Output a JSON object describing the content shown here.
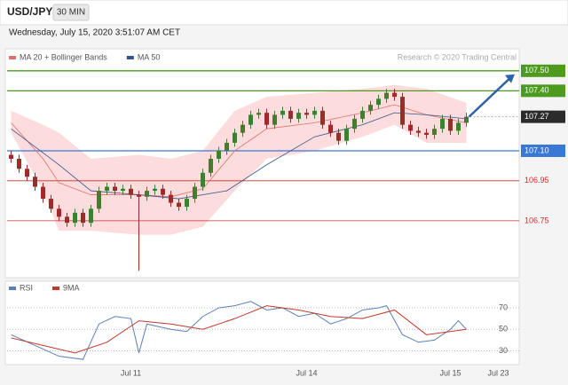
{
  "header": {
    "symbol": "USD/JPY",
    "timeframe": "30 MIN",
    "datetime": "Wednesday, July 15, 2020 3:51:07 AM CET",
    "source": "Research © 2020 Trading Central"
  },
  "chart_data": [
    {
      "type": "candlestick",
      "categories": [
        null,
        null,
        null,
        null,
        null,
        null,
        null,
        null,
        null,
        null,
        null,
        null,
        null,
        null,
        null,
        "Jul 11",
        null,
        null,
        null,
        null,
        null,
        null,
        null,
        null,
        null,
        null,
        null,
        null,
        null,
        null,
        null,
        null,
        null,
        null,
        null,
        null,
        null,
        "Jul 14",
        null,
        null,
        null,
        null,
        null,
        null,
        null,
        null,
        null,
        null,
        null,
        null,
        null,
        null,
        null,
        null,
        null,
        "Jul 15",
        null,
        null,
        null,
        null,
        null,
        "Jul 23",
        null,
        null
      ],
      "open": [
        107.08,
        107.06,
        107.01,
        106.97,
        106.92,
        106.86,
        106.81,
        106.77,
        106.74,
        106.79,
        106.74,
        106.81,
        106.9,
        106.92,
        106.9,
        106.91,
        106.88,
        106.87,
        106.9,
        106.91,
        106.88,
        106.84,
        106.82,
        106.86,
        106.92,
        106.99,
        107.06,
        107.1,
        107.14,
        107.19,
        107.23,
        107.28,
        107.29,
        107.23,
        107.28,
        107.3,
        107.26,
        107.29,
        107.28,
        107.3,
        107.23,
        107.19,
        107.15,
        107.21,
        107.26,
        107.3,
        107.33,
        107.36,
        107.39,
        107.37,
        107.23,
        107.2,
        107.19,
        107.18,
        107.21,
        107.26,
        107.2,
        107.24,
        null,
        null,
        null,
        null,
        null,
        null
      ],
      "high": [
        107.1,
        107.08,
        107.03,
        106.99,
        106.94,
        106.88,
        106.83,
        106.79,
        106.81,
        106.81,
        106.83,
        106.92,
        106.94,
        106.94,
        106.93,
        106.93,
        106.9,
        106.92,
        106.93,
        106.93,
        106.9,
        106.86,
        106.88,
        106.94,
        107.01,
        107.08,
        107.12,
        107.16,
        107.21,
        107.25,
        107.3,
        107.31,
        107.31,
        107.3,
        107.32,
        107.32,
        107.31,
        107.31,
        107.32,
        107.32,
        107.25,
        107.21,
        107.23,
        107.28,
        107.32,
        107.35,
        107.38,
        107.41,
        107.41,
        107.39,
        107.25,
        107.22,
        107.21,
        107.23,
        107.28,
        107.28,
        107.26,
        107.29,
        null,
        null,
        null,
        null,
        null,
        null
      ],
      "low": [
        107.04,
        106.99,
        106.95,
        106.9,
        106.84,
        106.79,
        106.75,
        106.72,
        106.72,
        106.72,
        106.72,
        106.79,
        106.88,
        106.88,
        106.88,
        106.86,
        106.5,
        106.85,
        106.88,
        106.86,
        106.82,
        106.8,
        106.8,
        106.84,
        106.9,
        106.97,
        107.04,
        107.08,
        107.12,
        107.17,
        107.21,
        107.26,
        107.21,
        107.21,
        107.26,
        107.24,
        107.24,
        107.26,
        107.26,
        107.21,
        107.17,
        107.13,
        107.13,
        107.19,
        107.24,
        107.28,
        107.31,
        107.34,
        107.35,
        107.21,
        107.18,
        107.17,
        107.16,
        107.16,
        107.19,
        107.18,
        107.18,
        107.22,
        null,
        null,
        null,
        null,
        null,
        null
      ],
      "close": [
        107.06,
        107.01,
        106.97,
        106.92,
        106.86,
        106.81,
        106.77,
        106.74,
        106.79,
        106.74,
        106.81,
        106.9,
        106.92,
        106.9,
        106.91,
        106.88,
        106.87,
        106.9,
        106.91,
        106.88,
        106.84,
        106.82,
        106.86,
        106.92,
        106.99,
        107.06,
        107.1,
        107.14,
        107.19,
        107.23,
        107.28,
        107.29,
        107.23,
        107.28,
        107.3,
        107.26,
        107.29,
        107.28,
        107.3,
        107.23,
        107.19,
        107.15,
        107.21,
        107.26,
        107.3,
        107.33,
        107.36,
        107.39,
        107.37,
        107.23,
        107.2,
        107.19,
        107.18,
        107.21,
        107.26,
        107.2,
        107.24,
        107.27,
        null,
        null,
        null,
        null,
        null,
        null
      ],
      "up_color": "#3f7f2f",
      "down_color": "#9e2a2a",
      "ylim": [
        106.47,
        107.61
      ],
      "overlays": [
        {
          "name": "MA 20 + Bollinger Bands",
          "color": "#e07070",
          "band_color": "#fbd3d3",
          "x": [
            0,
            4,
            6,
            10,
            16,
            20,
            24,
            28,
            32,
            38,
            44,
            48,
            52,
            57
          ],
          "values": [
            107.24,
            107.06,
            106.94,
            106.88,
            106.88,
            106.87,
            106.91,
            107.1,
            107.21,
            107.24,
            107.29,
            107.33,
            107.28,
            107.24
          ],
          "upper": [
            107.3,
            107.23,
            107.19,
            107.06,
            107.08,
            107.06,
            107.1,
            107.3,
            107.37,
            107.39,
            107.41,
            107.43,
            107.41,
            107.34
          ],
          "lower": [
            107.19,
            106.9,
            106.7,
            106.7,
            106.68,
            106.68,
            106.72,
            106.9,
            107.06,
            107.1,
            107.17,
            107.23,
            107.14,
            107.14
          ]
        },
        {
          "name": "MA 50",
          "color": "#34558b",
          "x": [
            0,
            6,
            10,
            16,
            21,
            27,
            32,
            38,
            44,
            48,
            52,
            57
          ],
          "values": [
            107.21,
            107.03,
            106.9,
            106.88,
            106.86,
            106.9,
            107.03,
            107.17,
            107.23,
            107.29,
            107.28,
            107.26
          ]
        }
      ],
      "levels": [
        {
          "value": 107.5,
          "label": "107.50",
          "color": "#4d9a1f",
          "boxed": true,
          "line": "solid"
        },
        {
          "value": 107.4,
          "label": "107.40",
          "color": "#4d9a1f",
          "boxed": true,
          "line": "solid"
        },
        {
          "value": 107.27,
          "label": "107.27",
          "color": "#2b2b2b",
          "boxed": true,
          "line": "dotted"
        },
        {
          "value": 107.1,
          "label": "107.10",
          "color": "#3a78d6",
          "boxed": true,
          "line": "solid"
        },
        {
          "value": 106.95,
          "label": "106.95",
          "color": "#c9302c",
          "boxed": false,
          "line": "solid"
        },
        {
          "value": 106.75,
          "label": "106.75",
          "color": "#c9302c",
          "boxed": false,
          "line": "solid"
        }
      ]
    },
    {
      "type": "line",
      "series": [
        {
          "name": "RSI",
          "color": "#5b7fb8",
          "x": [
            0,
            3,
            6,
            9,
            11,
            13,
            15,
            16,
            17,
            20,
            22,
            24,
            26,
            28,
            30,
            32,
            34,
            36,
            38,
            40,
            42,
            44,
            46,
            47,
            49,
            51,
            53,
            55,
            56,
            57
          ],
          "values": [
            45,
            35,
            25,
            22,
            55,
            62,
            60,
            28,
            55,
            50,
            48,
            62,
            70,
            72,
            76,
            68,
            70,
            62,
            65,
            55,
            60,
            68,
            70,
            72,
            45,
            38,
            40,
            50,
            58,
            50
          ]
        },
        {
          "name": "9MA",
          "color": "#c0392b",
          "x": [
            0,
            4,
            8,
            12,
            16,
            20,
            24,
            28,
            32,
            36,
            40,
            44,
            48,
            52,
            57
          ],
          "values": [
            42,
            35,
            28,
            38,
            58,
            55,
            50,
            60,
            72,
            68,
            62,
            60,
            68,
            45,
            50
          ]
        }
      ],
      "ylim": [
        18,
        94
      ],
      "yticks": [
        30,
        50,
        70
      ],
      "grid": true
    }
  ]
}
